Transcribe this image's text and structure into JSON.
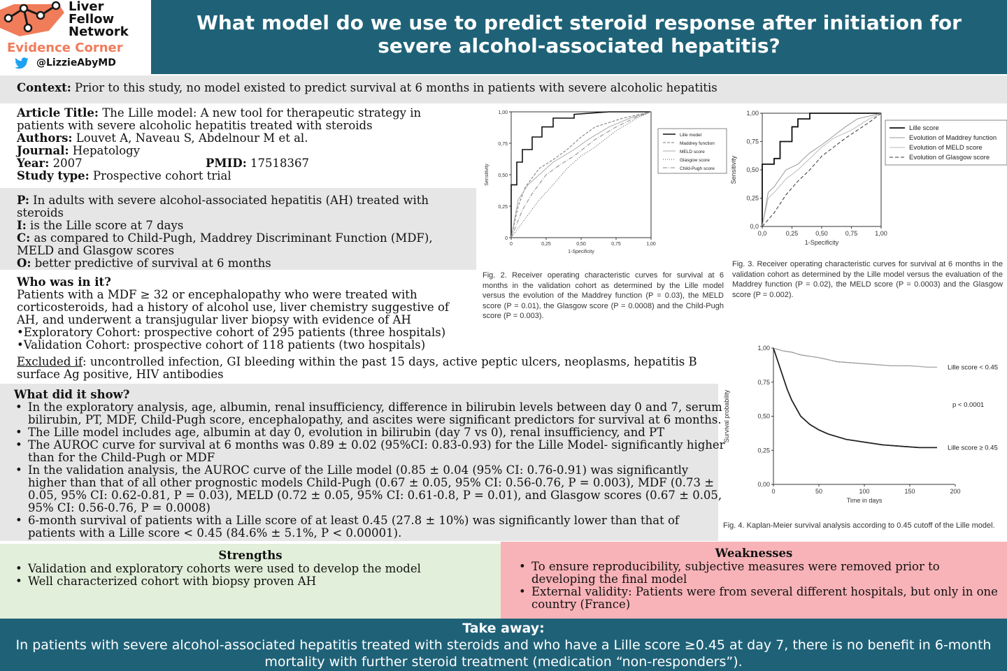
{
  "logo": {
    "line1": "Liver",
    "line2": "Fellow",
    "line3": "Network",
    "evidence": "Evidence Corner",
    "handle": "@LizzieAbyMD",
    "accent": "#f07c5a"
  },
  "header": {
    "title": "What model do we use to predict steroid response after initiation for severe alcohol-associated hepatitis?",
    "bg": "#1f6278"
  },
  "context": {
    "label": "Context:",
    "text": " Prior to this study, no model existed to predict survival at 6 months in patients with severe alcoholic hepatitis"
  },
  "article": {
    "title_label": "Article Title:",
    "title": " The Lille model: A new tool for therapeutic strategy in patients with severe alcoholic hepatitis treated with steroids",
    "authors_label": "Authors:",
    "authors": " Louvet A, Naveau S, Abdelnour M et al.",
    "journal_label": "Journal:",
    "journal": " Hepatology",
    "year_label": "Year:",
    "year": " 2007",
    "pmid_label": "PMID:",
    "pmid": " 17518367",
    "type_label": "Study type:",
    "type": " Prospective cohort trial"
  },
  "pico": {
    "p_label": "P:",
    "p": " In adults with severe alcohol-associated hepatitis (AH) treated with steroids",
    "i_label": "I:",
    "i": " is the Lille score at 7 days",
    "c_label": "C:",
    "c": " as compared to Child-Pugh, Maddrey Discriminant Function (MDF), MELD and Glasgow scores",
    "o_label": "O:",
    "o": " better predictive of survival at 6 months"
  },
  "who": {
    "heading": "Who was in it?",
    "text": "Patients with a MDF ≥ 32 or encephalopathy who were treated with corticosteroids, had a history of alcohol use, liver chemistry suggestive of AH, and underwent a transjugular liver biopsy with evidence of AH",
    "cohort1": "•Exploratory Cohort: prospective cohort of 295 patients (three hospitals)",
    "cohort2": "•Validation Cohort: prospective cohort of 118 patients (two hospitals)",
    "excluded_label": "Excluded if",
    "excluded": ": uncontrolled infection, GI bleeding within the past 15 days, active peptic ulcers, neoplasms, hepatitis B surface Ag positive, HIV antibodies"
  },
  "results": {
    "heading": "What did it show?",
    "bullets": [
      "In the exploratory analysis, age, albumin, renal insufficiency, difference in bilirubin levels between day 0 and 7, serum bilirubin, PT, MDF, Child-Pugh score, encephalopathy, and ascites were significant predictors for survival at 6 months.",
      "The Lille model includes age, albumin at day 0, evolution in bilirubin (day 7 vs 0), renal insufficiency, and PT",
      "The AUROC curve for survival at 6 months was 0.89 ± 0.02 (95%CI: 0.83-0.93) for the Lille Model- significantly higher than for the Child-Pugh or MDF",
      "In the validation analysis, the AUROC curve of the Lille model (0.85 ± 0.04 (95% CI: 0.76-0.91) was significantly higher than that of all other prognostic models Child-Pugh (0.67 ± 0.05, 95% CI: 0.56-0.76, P = 0.003), MDF (0.73 ± 0.05, 95% CI: 0.62-0.81, P = 0.03), MELD (0.72 ± 0.05, 95% CI: 0.61-0.8, P = 0.01), and Glasgow scores (0.67 ± 0.05, 95% CI: 0.56-0.76, P = 0.0008)",
      "6-month survival of patients with a Lille score of at least 0.45 (27.8 ± 10%) was significantly lower than that of patients with a Lille score < 0.45 (84.6% ± 5.1%, P < 0.00001)."
    ]
  },
  "strengths": {
    "heading": "Strengths",
    "bullets": [
      "Validation and exploratory cohorts were used to develop the model",
      "Well characterized cohort with biopsy proven AH"
    ],
    "bg": "#e2efda"
  },
  "weaknesses": {
    "heading": "Weaknesses",
    "bullets": [
      "To ensure reproducibility, subjective measures were removed prior to developing the final model",
      "External validity: Patients were from several different hospitals, but only in one country (France)"
    ],
    "bg": "#f8b3b8"
  },
  "takeaway": {
    "heading": "Take away:",
    "text": "In patients with severe alcohol-associated hepatitis treated with steroids and who have a Lille score ≥0.45 at day 7, there is no benefit in 6-month mortality with further steroid treatment (medication “non-responders”).",
    "bg": "#1f6278"
  },
  "figures": {
    "fig2_caption": "Fig. 2. Receiver operating characteristic curves for survival at 6 months in the validation cohort as determined by the Lille model versus the evolution of the Maddrey function (P = 0.03), the MELD score (P = 0.01), the Glasgow score (P = 0.0008) and the Child-Pugh score (P = 0.003).",
    "fig3_caption": "Fig. 3. Receiver operating characteristic curves for survival at 6 months in the validation cohort as determined by the Lille model versus the evaluation of the Maddrey function (P = 0.02), the MELD score (P = 0.0003) and the Glasgow score (P = 0.002).",
    "fig4_caption": "Fig. 4. Kaplan-Meier survival analysis according to 0.45 cutoff of the Lille model."
  },
  "chart_data": [
    {
      "type": "line",
      "name": "fig2-roc",
      "xlabel": "1-Specificity",
      "ylabel": "Sensitivity",
      "xlim": [
        0,
        1
      ],
      "ylim": [
        0,
        1
      ],
      "xticks": [
        "0",
        "0,25",
        "0,50",
        "0,75",
        "1,00"
      ],
      "yticks": [
        "0",
        "0,25",
        "0,50",
        "0,75",
        "1,00"
      ],
      "legend": [
        "Lille model",
        "Maddrey function",
        "MELD score",
        "Glasgow score",
        "Child-Pugh score"
      ],
      "legend_position": "right",
      "series": [
        {
          "name": "Lille model",
          "x": [
            0,
            0,
            0.04,
            0.04,
            0.08,
            0.08,
            0.15,
            0.15,
            0.22,
            0.22,
            0.3,
            0.3,
            0.45,
            0.45,
            0.7,
            1
          ],
          "y": [
            0,
            0.42,
            0.42,
            0.6,
            0.6,
            0.7,
            0.7,
            0.8,
            0.8,
            0.88,
            0.88,
            0.95,
            0.95,
            0.98,
            1,
            1
          ]
        },
        {
          "name": "Maddrey function",
          "x": [
            0,
            0.05,
            0.1,
            0.2,
            0.3,
            0.4,
            0.5,
            0.6,
            0.8,
            1
          ],
          "y": [
            0,
            0.25,
            0.4,
            0.55,
            0.62,
            0.7,
            0.8,
            0.88,
            0.95,
            1
          ]
        },
        {
          "name": "MELD score",
          "x": [
            0,
            0.05,
            0.12,
            0.2,
            0.3,
            0.45,
            0.55,
            0.7,
            0.85,
            1
          ],
          "y": [
            0,
            0.3,
            0.42,
            0.5,
            0.6,
            0.7,
            0.78,
            0.88,
            0.95,
            1
          ]
        },
        {
          "name": "Glasgow score",
          "x": [
            0,
            0.1,
            0.2,
            0.3,
            0.4,
            0.5,
            0.6,
            0.75,
            0.9,
            1
          ],
          "y": [
            0,
            0.15,
            0.3,
            0.42,
            0.55,
            0.65,
            0.72,
            0.85,
            0.95,
            1
          ]
        },
        {
          "name": "Child-Pugh score",
          "x": [
            0,
            0.08,
            0.15,
            0.25,
            0.35,
            0.45,
            0.6,
            0.75,
            0.9,
            1
          ],
          "y": [
            0,
            0.22,
            0.35,
            0.5,
            0.58,
            0.65,
            0.78,
            0.88,
            0.96,
            1
          ]
        }
      ]
    },
    {
      "type": "line",
      "name": "fig3-roc",
      "xlabel": "1-Specificity",
      "ylabel": "Sensitivity",
      "xlim": [
        0,
        1
      ],
      "ylim": [
        0,
        1
      ],
      "xticks": [
        "0,0",
        "0,25",
        "0,50",
        "0,75",
        "1,00"
      ],
      "yticks": [
        "0,0",
        "0,25",
        "0,50",
        "0,75",
        "1,00"
      ],
      "legend": [
        "Lille score",
        "Evolution of Maddrey function",
        "Evolution of MELD score",
        "Evolution of Glasgow score"
      ],
      "legend_position": "top-right",
      "series": [
        {
          "name": "Lille score",
          "x": [
            0,
            0,
            0.03,
            0.03,
            0.1,
            0.1,
            0.15,
            0.15,
            0.25,
            0.25,
            0.3,
            0.3,
            0.4,
            0.4,
            0.6,
            1
          ],
          "y": [
            0,
            0.55,
            0.55,
            0.55,
            0.55,
            0.6,
            0.6,
            0.75,
            0.75,
            0.88,
            0.88,
            0.95,
            0.95,
            1,
            1,
            1
          ]
        },
        {
          "name": "Evolution of Maddrey function",
          "x": [
            0,
            0.05,
            0.1,
            0.2,
            0.3,
            0.4,
            0.5,
            0.6,
            0.7,
            0.8,
            1
          ],
          "y": [
            0,
            0.3,
            0.35,
            0.5,
            0.55,
            0.65,
            0.72,
            0.8,
            0.88,
            0.95,
            1
          ]
        },
        {
          "name": "Evolution of MELD score",
          "x": [
            0,
            0.05,
            0.1,
            0.2,
            0.3,
            0.4,
            0.5,
            0.6,
            0.75,
            0.9,
            1
          ],
          "y": [
            0,
            0.25,
            0.3,
            0.42,
            0.5,
            0.6,
            0.7,
            0.78,
            0.85,
            0.95,
            1
          ]
        },
        {
          "name": "Evolution of Glasgow score",
          "x": [
            0,
            0.1,
            0.2,
            0.3,
            0.4,
            0.5,
            0.6,
            0.7,
            0.8,
            0.9,
            1
          ],
          "y": [
            0,
            0.12,
            0.28,
            0.4,
            0.5,
            0.62,
            0.7,
            0.78,
            0.85,
            0.92,
            1
          ]
        }
      ]
    },
    {
      "type": "line",
      "name": "fig4-kaplan-meier",
      "xlabel": "Time in days",
      "ylabel": "Survival probability",
      "xlim": [
        0,
        200
      ],
      "ylim": [
        0,
        1
      ],
      "xticks": [
        "0",
        "50",
        "100",
        "150",
        "200"
      ],
      "yticks": [
        "0,00",
        "0,25",
        "0,50",
        "0,75",
        "1,00"
      ],
      "annotation": "p < 0.0001",
      "series": [
        {
          "name": "Lille score < 0.45",
          "x": [
            0,
            10,
            20,
            30,
            50,
            70,
            90,
            110,
            130,
            150,
            170,
            180
          ],
          "y": [
            1,
            0.98,
            0.97,
            0.95,
            0.93,
            0.9,
            0.89,
            0.88,
            0.87,
            0.87,
            0.86,
            0.86
          ]
        },
        {
          "name": "Lille score ≥ 0.45",
          "x": [
            0,
            5,
            10,
            15,
            20,
            25,
            30,
            40,
            50,
            60,
            70,
            80,
            100,
            120,
            140,
            160,
            180
          ],
          "y": [
            1,
            0.9,
            0.8,
            0.7,
            0.62,
            0.56,
            0.5,
            0.44,
            0.4,
            0.37,
            0.35,
            0.33,
            0.31,
            0.29,
            0.28,
            0.27,
            0.27
          ]
        }
      ]
    }
  ]
}
